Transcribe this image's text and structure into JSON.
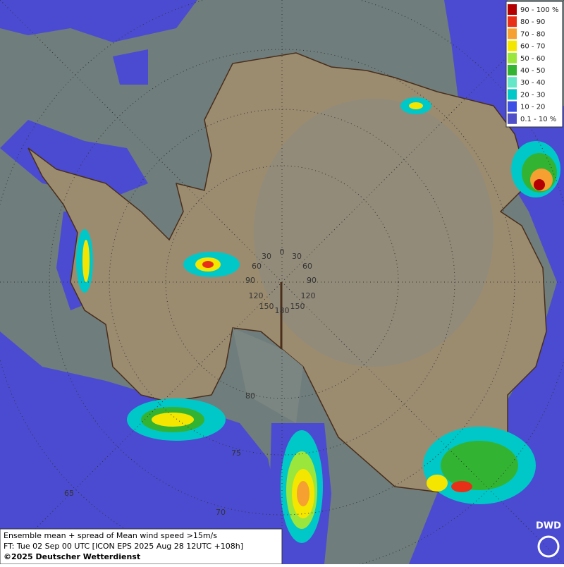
{
  "legend": [
    {
      "label": "90 - 100 %",
      "color": "#b40000"
    },
    {
      "label": "80 - 90",
      "color": "#e83018"
    },
    {
      "label": "70 - 80",
      "color": "#f5a030"
    },
    {
      "label": "60 - 70",
      "color": "#f5e600"
    },
    {
      "label": "50 - 60",
      "color": "#9ae63c"
    },
    {
      "label": "40 - 50",
      "color": "#32b432"
    },
    {
      "label": "30 - 40",
      "color": "#64e6c8"
    },
    {
      "label": "20 - 30",
      "color": "#00c8c8"
    },
    {
      "label": "10 - 20",
      "color": "#3c50e6"
    },
    {
      "label": "0.1 - 10 %",
      "color": "#5050c8"
    }
  ],
  "grid_labels": [
    "0",
    "30",
    "30",
    "60",
    "60",
    "90",
    "90",
    "120",
    "120",
    "150",
    "150",
    "180",
    "80",
    "75",
    "70",
    "65"
  ],
  "footer": {
    "line1": "Ensemble mean + spread of Mean wind speed >15m/s",
    "line2": "FT: Tue 02 Sep 00 UTC [ICON EPS 2025 Aug 28 12UTC +108h]",
    "line3": "©2025 Deutscher Wetterdienst"
  },
  "logo": "DWD"
}
